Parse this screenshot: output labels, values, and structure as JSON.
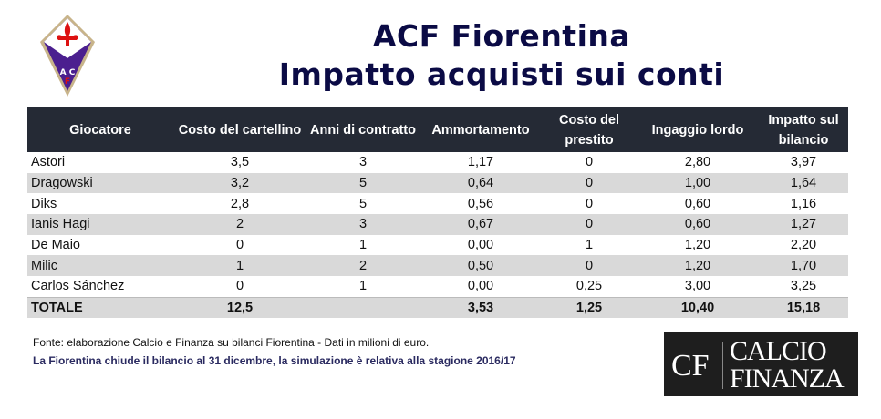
{
  "header": {
    "title": "ACF Fiorentina",
    "subtitle": "Impatto acquisti sui conti",
    "logo_text": "ACF"
  },
  "colors": {
    "header_bg": "#252a35",
    "title": "#0b0b45",
    "stripe": "#d9d9d9",
    "total_bg": "#ffe699"
  },
  "table": {
    "columns": [
      "Giocatore",
      "Costo del cartellino",
      "Anni di contratto",
      "Ammortamento",
      "Costo del prestito",
      "Ingaggio lordo",
      "Impatto sul bilancio"
    ],
    "rows": [
      [
        "Astori",
        "3,5",
        "3",
        "1,17",
        "0",
        "2,80",
        "3,97"
      ],
      [
        "Dragowski",
        "3,2",
        "5",
        "0,64",
        "0",
        "1,00",
        "1,64"
      ],
      [
        "Diks",
        "2,8",
        "5",
        "0,56",
        "0",
        "0,60",
        "1,16"
      ],
      [
        "Ianis Hagi",
        "2",
        "3",
        "0,67",
        "0",
        "0,60",
        "1,27"
      ],
      [
        "De Maio",
        "0",
        "1",
        "0,00",
        "1",
        "1,20",
        "2,20"
      ],
      [
        "Milic",
        "1",
        "2",
        "0,50",
        "0",
        "1,20",
        "1,70"
      ],
      [
        "Carlos Sánchez",
        "0",
        "1",
        "0,00",
        "0,25",
        "3,00",
        "3,25"
      ]
    ],
    "total": [
      "TOTALE",
      "12,5",
      "",
      "3,53",
      "1,25",
      "10,40",
      "15,18"
    ]
  },
  "notes": {
    "source": "Fonte: elaborazione Calcio e Finanza su bilanci Fiorentina - Dati in milioni di euro.",
    "info": "La Fiorentina chiude il bilancio al 31 dicembre, la simulazione è relativa alla stagione 2016/17"
  },
  "brand": {
    "short": "CF",
    "word1": "CALCIO",
    "word2": "FINANZA"
  }
}
